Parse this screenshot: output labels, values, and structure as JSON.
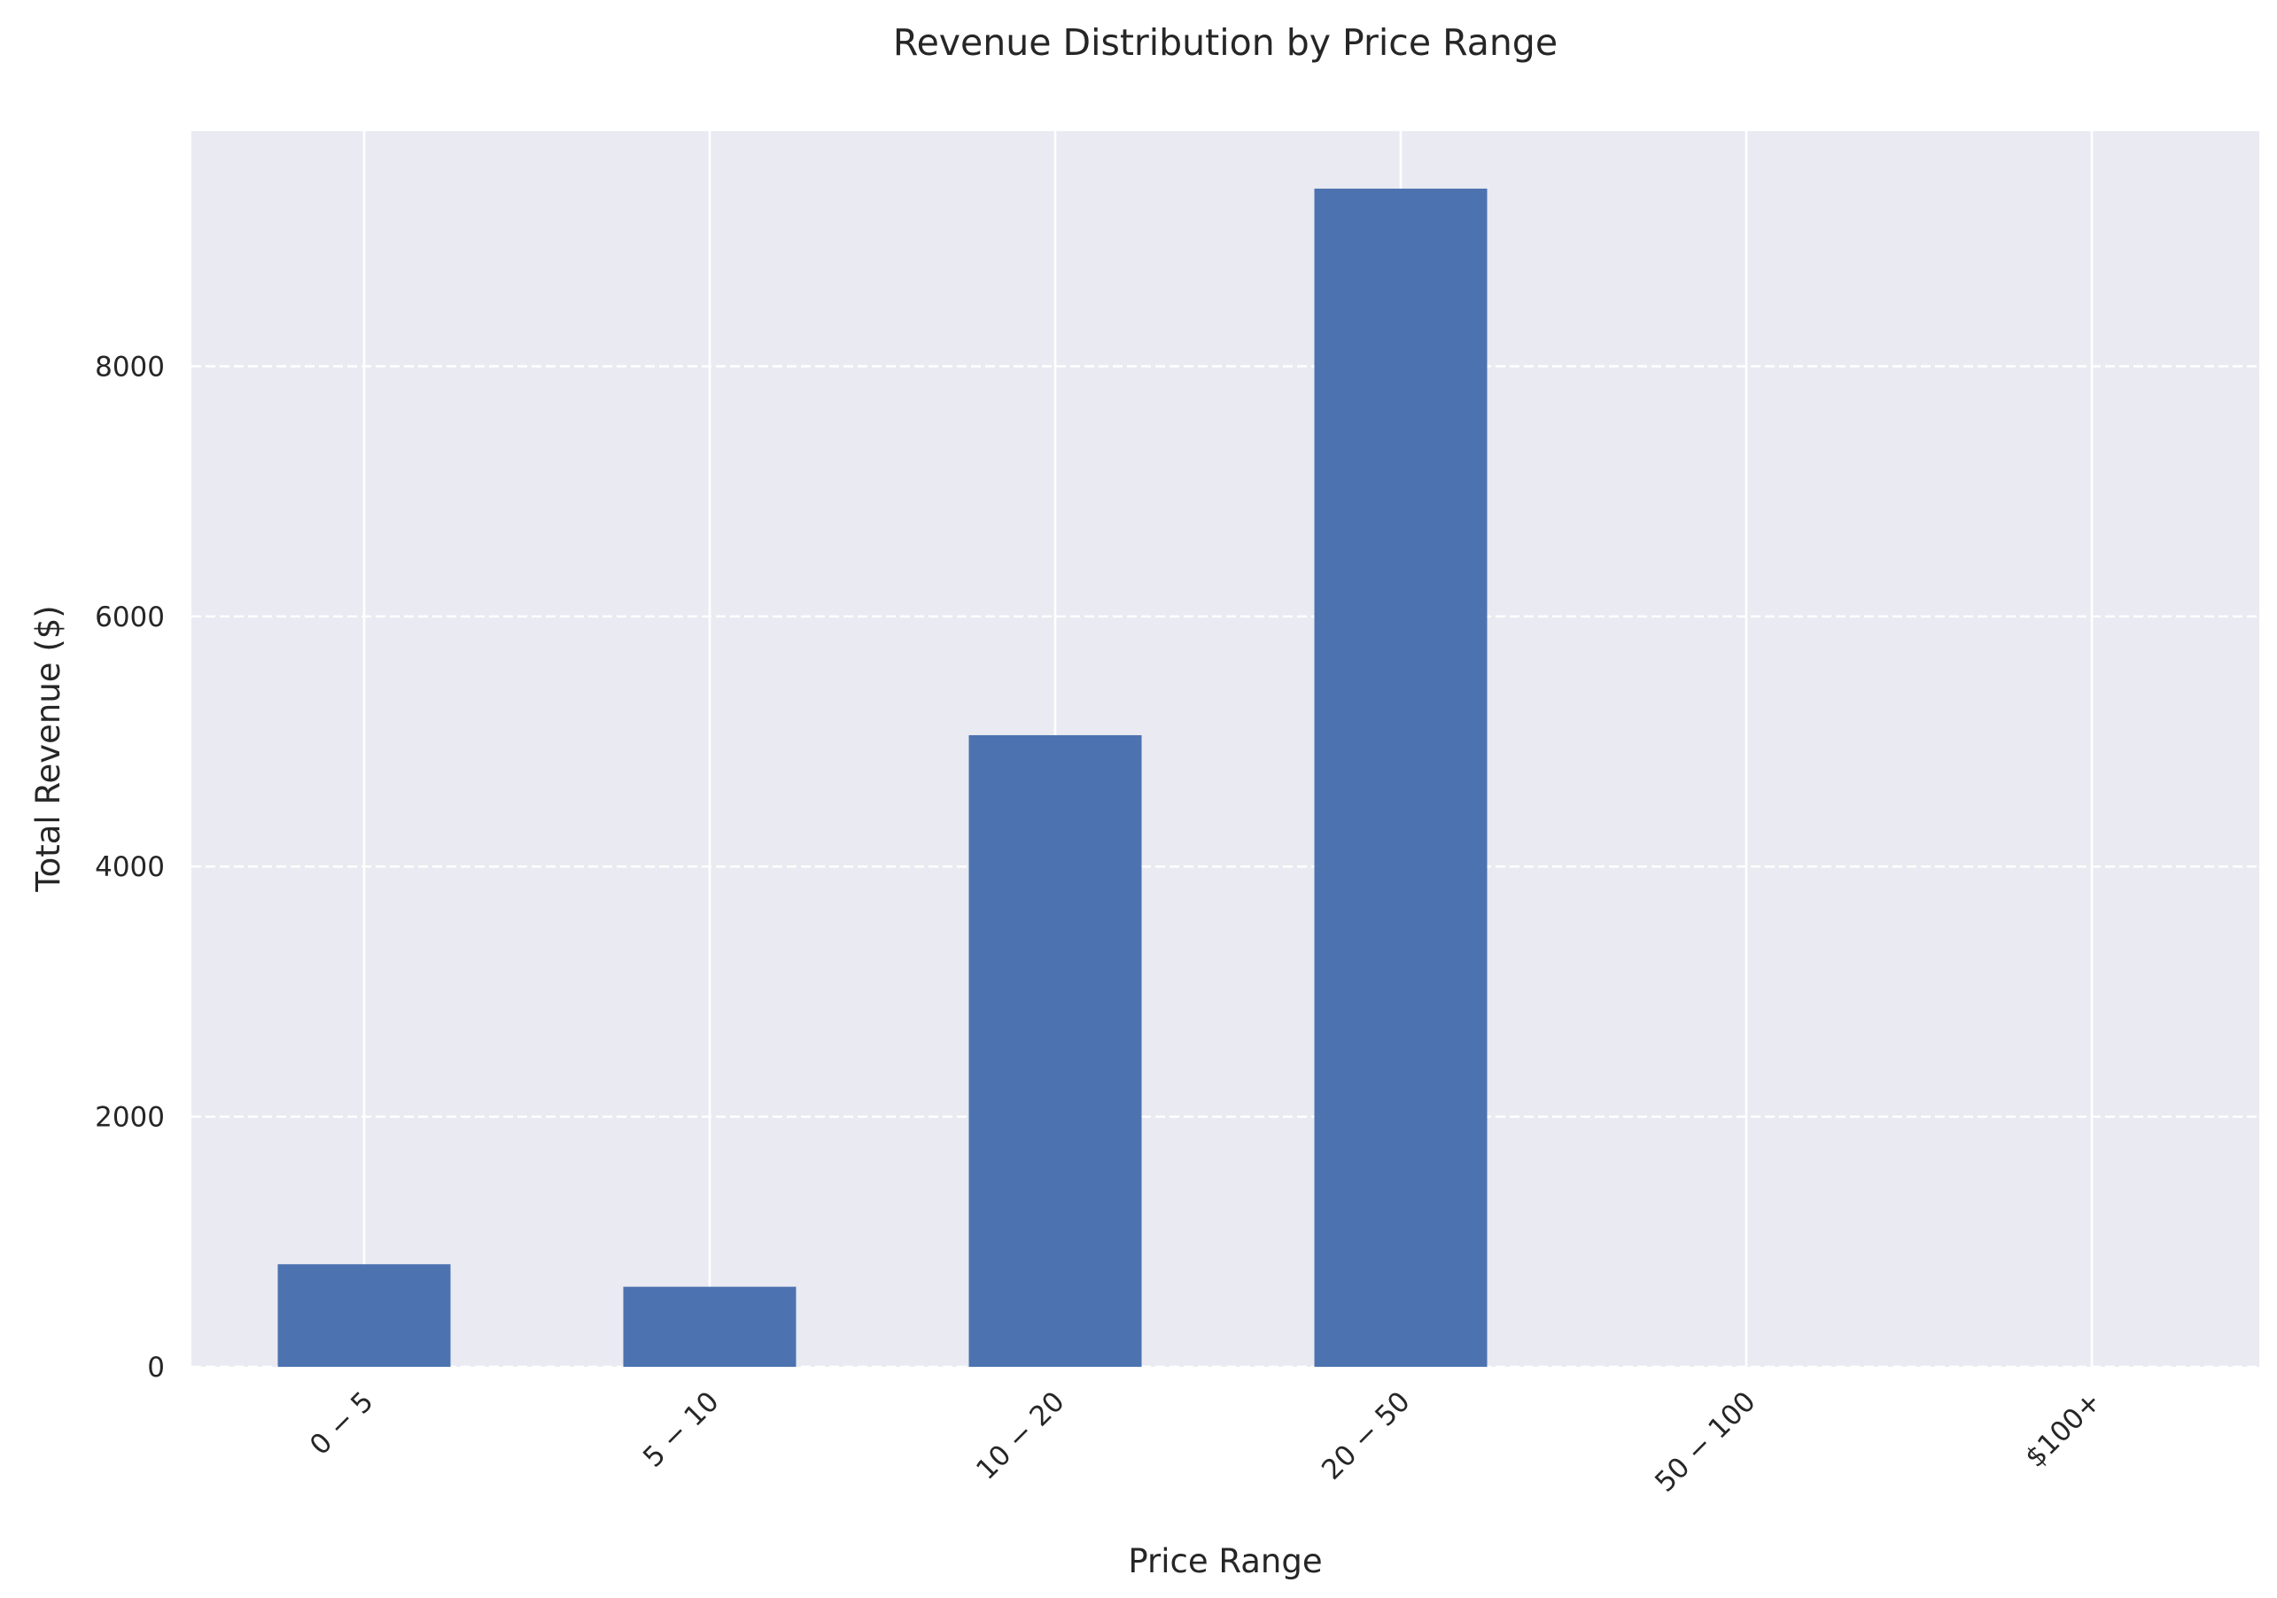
{
  "chart_data": {
    "type": "bar",
    "title": "Revenue Distribution by Price Range",
    "xlabel": "Price Range",
    "ylabel": "Total Revenue ($)",
    "categories": [
      "0 − 5",
      "5 − 10",
      "10 − 20",
      "20 − 50",
      "50 − 100",
      "$100+"
    ],
    "values": [
      820,
      640,
      5050,
      9420,
      0,
      0
    ],
    "ylim": [
      0,
      9880
    ],
    "yticks": [
      0,
      2000,
      4000,
      6000,
      8000
    ],
    "ytick_labels": [
      "0",
      "2000",
      "4000",
      "6000",
      "8000"
    ],
    "grid": true,
    "x_tick_rotation": "45 degrees",
    "colors": {
      "bar": "#4c72b0",
      "plot_background": "#eaeaf2",
      "grid": "#ffffff"
    }
  }
}
